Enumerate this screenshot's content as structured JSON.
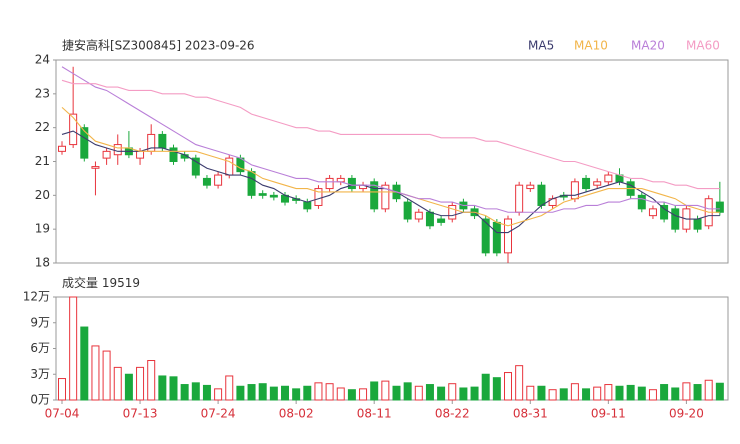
{
  "chart_data": {
    "type": "candlestick",
    "title": "捷安高科[SZ300845] 2023-09-26",
    "categories": [
      "07-04",
      null,
      null,
      null,
      null,
      null,
      null,
      "07-13",
      null,
      null,
      null,
      null,
      null,
      null,
      "07-24",
      null,
      null,
      null,
      null,
      null,
      null,
      "08-02",
      null,
      null,
      null,
      null,
      null,
      null,
      "08-11",
      null,
      null,
      null,
      null,
      null,
      null,
      "08-22",
      null,
      null,
      null,
      null,
      null,
      null,
      "08-31",
      null,
      null,
      null,
      null,
      null,
      null,
      "09-11",
      null,
      null,
      null,
      null,
      null,
      null,
      "09-20",
      null,
      null,
      null
    ],
    "open": [
      21.3,
      21.5,
      22.0,
      20.8,
      21.1,
      21.2,
      21.4,
      21.1,
      21.3,
      21.8,
      21.4,
      21.2,
      21.1,
      20.5,
      20.3,
      20.6,
      21.1,
      20.7,
      20.05,
      20.0,
      20.0,
      19.9,
      19.8,
      19.7,
      20.2,
      20.4,
      20.5,
      20.2,
      20.4,
      19.6,
      20.3,
      19.8,
      19.3,
      19.5,
      19.3,
      19.3,
      19.8,
      19.6,
      19.3,
      19.2,
      18.3,
      19.5,
      20.2,
      20.3,
      19.7,
      20.0,
      19.9,
      20.5,
      20.3,
      20.4,
      20.6,
      20.4,
      20.0,
      19.4,
      19.7,
      19.6,
      19.0,
      19.3,
      19.1,
      19.8
    ],
    "high": [
      21.6,
      23.8,
      22.1,
      21.0,
      21.4,
      21.8,
      21.9,
      21.4,
      22.1,
      21.9,
      21.5,
      21.3,
      21.2,
      20.6,
      20.7,
      21.2,
      21.2,
      20.8,
      20.15,
      20.1,
      20.1,
      20.0,
      19.9,
      20.3,
      20.6,
      20.6,
      20.6,
      20.4,
      20.5,
      20.4,
      20.4,
      19.9,
      19.6,
      19.6,
      19.4,
      19.8,
      19.9,
      19.7,
      19.4,
      19.3,
      19.4,
      20.4,
      20.4,
      20.4,
      20.0,
      20.1,
      20.5,
      20.6,
      20.5,
      20.7,
      20.8,
      20.5,
      20.1,
      19.7,
      19.8,
      19.7,
      19.7,
      19.4,
      20.0,
      20.4
    ],
    "low": [
      21.2,
      21.4,
      21.0,
      20.0,
      20.9,
      20.9,
      21.1,
      20.9,
      21.2,
      21.3,
      20.9,
      21.0,
      20.5,
      20.2,
      20.2,
      20.5,
      20.6,
      19.9,
      19.9,
      19.85,
      19.7,
      19.75,
      19.5,
      19.6,
      20.1,
      20.3,
      20.1,
      20.1,
      19.5,
      19.5,
      19.8,
      19.2,
      19.2,
      19.0,
      19.1,
      19.2,
      19.5,
      19.3,
      18.2,
      18.2,
      18.0,
      19.4,
      20.1,
      19.6,
      19.6,
      19.85,
      19.8,
      20.1,
      20.2,
      20.3,
      20.3,
      19.9,
      19.5,
      19.3,
      19.2,
      18.9,
      18.9,
      18.9,
      19.0,
      19.4
    ],
    "close": [
      21.45,
      22.4,
      21.1,
      20.85,
      21.3,
      21.5,
      21.2,
      21.3,
      21.8,
      21.4,
      21.0,
      21.1,
      20.6,
      20.3,
      20.6,
      21.1,
      20.7,
      20.0,
      20.0,
      19.95,
      19.8,
      19.85,
      19.6,
      20.2,
      20.5,
      20.5,
      20.2,
      20.3,
      19.6,
      20.3,
      19.9,
      19.3,
      19.5,
      19.1,
      19.2,
      19.7,
      19.6,
      19.4,
      18.3,
      18.3,
      19.3,
      20.3,
      20.3,
      19.7,
      19.9,
      19.95,
      20.4,
      20.2,
      20.4,
      20.6,
      20.4,
      20.0,
      19.6,
      19.6,
      19.3,
      19.0,
      19.6,
      19.0,
      19.9,
      19.5
    ],
    "up_color": "#e8343c",
    "down_color": "#1aa83c",
    "series": [
      {
        "name": "MA5",
        "color": "#3c3c6e",
        "values": [
          21.8,
          21.9,
          21.7,
          21.5,
          21.4,
          21.3,
          21.3,
          21.3,
          21.4,
          21.4,
          21.3,
          21.2,
          21.0,
          20.8,
          20.7,
          20.6,
          20.6,
          20.5,
          20.3,
          20.2,
          20.0,
          19.9,
          19.8,
          19.9,
          20.0,
          20.2,
          20.3,
          20.3,
          20.2,
          20.2,
          20.1,
          19.9,
          19.7,
          19.5,
          19.4,
          19.4,
          19.5,
          19.5,
          19.2,
          18.9,
          18.9,
          19.1,
          19.4,
          19.7,
          19.9,
          20.0,
          20.0,
          20.1,
          20.2,
          20.3,
          20.4,
          20.3,
          20.1,
          19.9,
          19.6,
          19.4,
          19.3,
          19.3,
          19.4,
          19.4
        ]
      },
      {
        "name": "MA10",
        "color": "#f2b54a",
        "values": [
          22.6,
          22.3,
          21.9,
          21.6,
          21.5,
          21.4,
          21.4,
          21.3,
          21.3,
          21.3,
          21.3,
          21.3,
          21.3,
          21.2,
          21.1,
          21.0,
          20.8,
          20.7,
          20.5,
          20.4,
          20.3,
          20.2,
          20.2,
          20.1,
          20.1,
          20.1,
          20.1,
          20.1,
          20.1,
          20.1,
          20.1,
          20.0,
          19.9,
          19.8,
          19.7,
          19.6,
          19.5,
          19.5,
          19.4,
          19.2,
          19.1,
          19.2,
          19.3,
          19.4,
          19.6,
          19.8,
          19.9,
          20.0,
          20.1,
          20.2,
          20.2,
          20.2,
          20.2,
          20.1,
          20.0,
          19.9,
          19.7,
          19.6,
          19.5,
          19.5
        ]
      },
      {
        "name": "MA20",
        "color": "#b97fd8",
        "values": [
          23.8,
          23.6,
          23.4,
          23.2,
          23.1,
          22.9,
          22.7,
          22.5,
          22.3,
          22.1,
          21.9,
          21.7,
          21.5,
          21.4,
          21.3,
          21.2,
          21.1,
          20.9,
          20.8,
          20.7,
          20.6,
          20.5,
          20.5,
          20.4,
          20.4,
          20.4,
          20.3,
          20.3,
          20.3,
          20.2,
          20.1,
          20.0,
          19.9,
          19.9,
          19.8,
          19.8,
          19.7,
          19.7,
          19.6,
          19.6,
          19.5,
          19.5,
          19.5,
          19.5,
          19.5,
          19.6,
          19.6,
          19.7,
          19.7,
          19.8,
          19.8,
          19.9,
          19.9,
          19.8,
          19.8,
          19.7,
          19.7,
          19.7,
          19.6,
          19.6
        ]
      },
      {
        "name": "MA60",
        "color": "#f49cc4",
        "values": [
          23.4,
          23.3,
          23.3,
          23.3,
          23.2,
          23.2,
          23.1,
          23.1,
          23.1,
          23.0,
          23.0,
          23.0,
          22.9,
          22.9,
          22.8,
          22.7,
          22.6,
          22.4,
          22.3,
          22.2,
          22.1,
          22.0,
          22.0,
          21.9,
          21.9,
          21.8,
          21.8,
          21.8,
          21.8,
          21.8,
          21.8,
          21.8,
          21.8,
          21.8,
          21.7,
          21.7,
          21.7,
          21.7,
          21.6,
          21.6,
          21.5,
          21.4,
          21.3,
          21.2,
          21.1,
          21.0,
          21.0,
          20.9,
          20.8,
          20.7,
          20.6,
          20.5,
          20.5,
          20.4,
          20.4,
          20.3,
          20.3,
          20.2,
          20.2,
          20.2
        ]
      }
    ],
    "ylim": [
      18,
      24
    ],
    "yticks": [
      18,
      19,
      20,
      21,
      22,
      23,
      24
    ],
    "volume": {
      "title": "成交量",
      "values": [
        25000,
        120000,
        85000,
        63000,
        57000,
        38000,
        30000,
        38000,
        46000,
        28000,
        27000,
        18000,
        20000,
        17000,
        13000,
        28000,
        16000,
        18000,
        19000,
        15000,
        16000,
        13000,
        16000,
        20000,
        19000,
        14000,
        12000,
        13000,
        21000,
        22000,
        16000,
        20000,
        16000,
        18000,
        15000,
        19000,
        14000,
        15000,
        30000,
        26000,
        32000,
        40000,
        16000,
        16000,
        12000,
        13000,
        19000,
        13000,
        15000,
        18000,
        16000,
        17000,
        15000,
        12000,
        18000,
        14000,
        20000,
        18000,
        23000,
        19519
      ],
      "ylim": [
        0,
        120000
      ],
      "yticks": [
        {
          "value": 0,
          "label": "0万"
        },
        {
          "value": 30000,
          "label": "3万"
        },
        {
          "value": 60000,
          "label": "6万"
        },
        {
          "value": 90000,
          "label": "9万"
        },
        {
          "value": 120000,
          "label": "12万"
        }
      ]
    }
  }
}
